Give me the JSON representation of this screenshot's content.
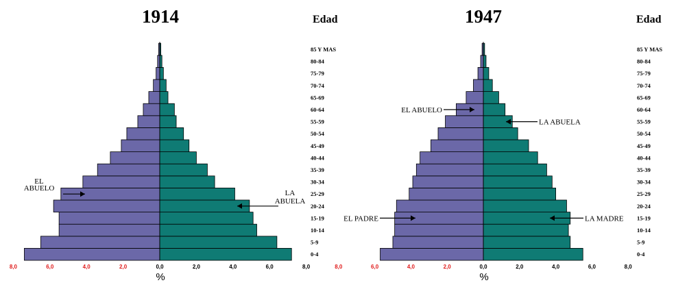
{
  "chart_data": [
    {
      "type": "bar",
      "orientation": "horizontal-population-pyramid",
      "title": "1914",
      "ytitle": "Edad",
      "xlabel": "%",
      "categories": [
        "0-4",
        "5-9",
        "10-14",
        "15-19",
        "20-24",
        "25-29",
        "30-34",
        "35-39",
        "40-44",
        "45-49",
        "50-54",
        "55-59",
        "60-64",
        "65-69",
        "70-74",
        "75-79",
        "80-84",
        "85 Y MAS"
      ],
      "xticks": [
        "8,0",
        "6,0",
        "4,0",
        "2,0",
        "0,0",
        "2,0",
        "4,0",
        "6,0",
        "8,0"
      ],
      "xlim": [
        -8,
        8
      ],
      "series": [
        {
          "side": "left",
          "color": "#6b68a8",
          "values": [
            7.4,
            6.5,
            5.5,
            5.5,
            5.8,
            5.4,
            4.2,
            3.4,
            2.7,
            2.1,
            1.8,
            1.2,
            0.9,
            0.6,
            0.35,
            0.2,
            0.12,
            0.06
          ]
        },
        {
          "side": "right",
          "color": "#0f7b74",
          "values": [
            7.2,
            6.4,
            5.3,
            5.1,
            4.9,
            4.1,
            3.0,
            2.6,
            2.0,
            1.6,
            1.3,
            0.9,
            0.8,
            0.45,
            0.35,
            0.2,
            0.12,
            0.06
          ]
        }
      ],
      "annotations": [
        {
          "lines": [
            "EL",
            "ABUELO"
          ],
          "side": "left",
          "age": "25-29"
        },
        {
          "lines": [
            "LA",
            "ABUELA"
          ],
          "side": "right",
          "age": "20-24"
        }
      ]
    },
    {
      "type": "bar",
      "orientation": "horizontal-population-pyramid",
      "title": "1947",
      "ytitle": "Edad",
      "xlabel": "%",
      "categories": [
        "0-4",
        "5-9",
        "10-14",
        "15-19",
        "20-24",
        "25-29",
        "30-34",
        "35-39",
        "40-44",
        "45-49",
        "50-54",
        "55-59",
        "60-64",
        "65-69",
        "70-74",
        "75-79",
        "80-84",
        "85 Y MAS"
      ],
      "xticks": [
        "8,0",
        "6,0",
        "4,0",
        "2,0",
        "0,0",
        "2,0",
        "4,0",
        "6,0",
        "8,0"
      ],
      "xlim": [
        -8,
        8
      ],
      "series": [
        {
          "side": "left",
          "color": "#6b68a8",
          "values": [
            5.7,
            5.0,
            4.9,
            4.9,
            4.8,
            4.1,
            3.9,
            3.7,
            3.5,
            2.9,
            2.5,
            2.1,
            1.5,
            0.95,
            0.55,
            0.3,
            0.15,
            0.07
          ]
        },
        {
          "side": "right",
          "color": "#0f7b74",
          "values": [
            5.5,
            4.8,
            4.7,
            4.8,
            4.6,
            4.0,
            3.8,
            3.5,
            3.0,
            2.5,
            1.9,
            1.6,
            1.2,
            0.85,
            0.5,
            0.3,
            0.15,
            0.07
          ]
        }
      ],
      "annotations": [
        {
          "lines": [
            "EL ABUELO"
          ],
          "side": "left",
          "age": "60-64"
        },
        {
          "lines": [
            "LA ABUELA"
          ],
          "side": "right",
          "age": "55-59"
        },
        {
          "lines": [
            "EL PADRE"
          ],
          "side": "left",
          "age": "15-19"
        },
        {
          "lines": [
            "LA MADRE"
          ],
          "side": "right",
          "age": "15-19"
        }
      ]
    }
  ],
  "colors": {
    "tick_negative": "#e01b1b",
    "tick_positive": "#000000",
    "left_bars": "#6b68a8",
    "right_bars": "#0f7b74"
  }
}
